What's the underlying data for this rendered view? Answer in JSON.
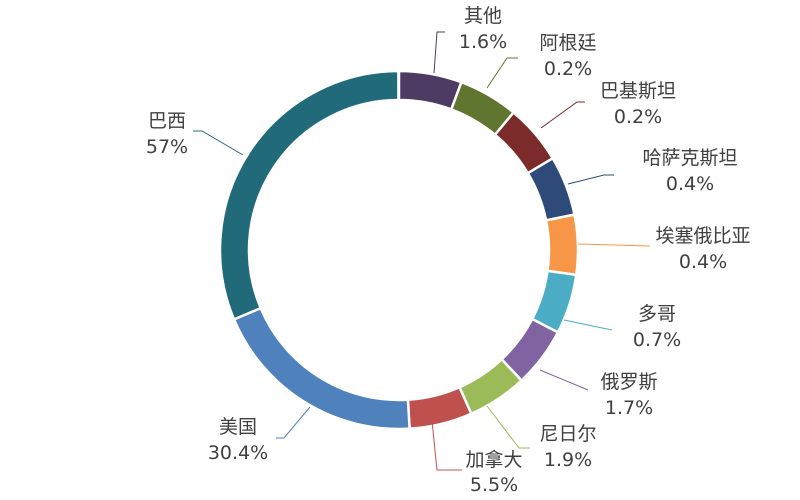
{
  "chart_data": {
    "type": "pie",
    "donut": true,
    "legend": "none",
    "categories": [
      "其他",
      "阿根廷",
      "巴基斯坦",
      "哈萨克斯坦",
      "埃塞俄比亚",
      "多哥",
      "俄罗斯",
      "尼日尔",
      "加拿大",
      "美国",
      "巴西"
    ],
    "values": [
      1.6,
      0.2,
      0.2,
      0.4,
      0.4,
      0.7,
      1.7,
      1.9,
      5.5,
      30.4,
      57
    ],
    "value_labels": [
      "1.6%",
      "0.2%",
      "0.2%",
      "0.4%",
      "0.4%",
      "0.7%",
      "1.7%",
      "1.9%",
      "5.5%",
      "30.4%",
      "57%"
    ],
    "colors": [
      "#4e3b64",
      "#5f7530",
      "#7b2b2a",
      "#2e4a78",
      "#f79646",
      "#4bacc6",
      "#8064a2",
      "#9bbb59",
      "#c0504d",
      "#4f81bd",
      "#216a7a"
    ]
  }
}
